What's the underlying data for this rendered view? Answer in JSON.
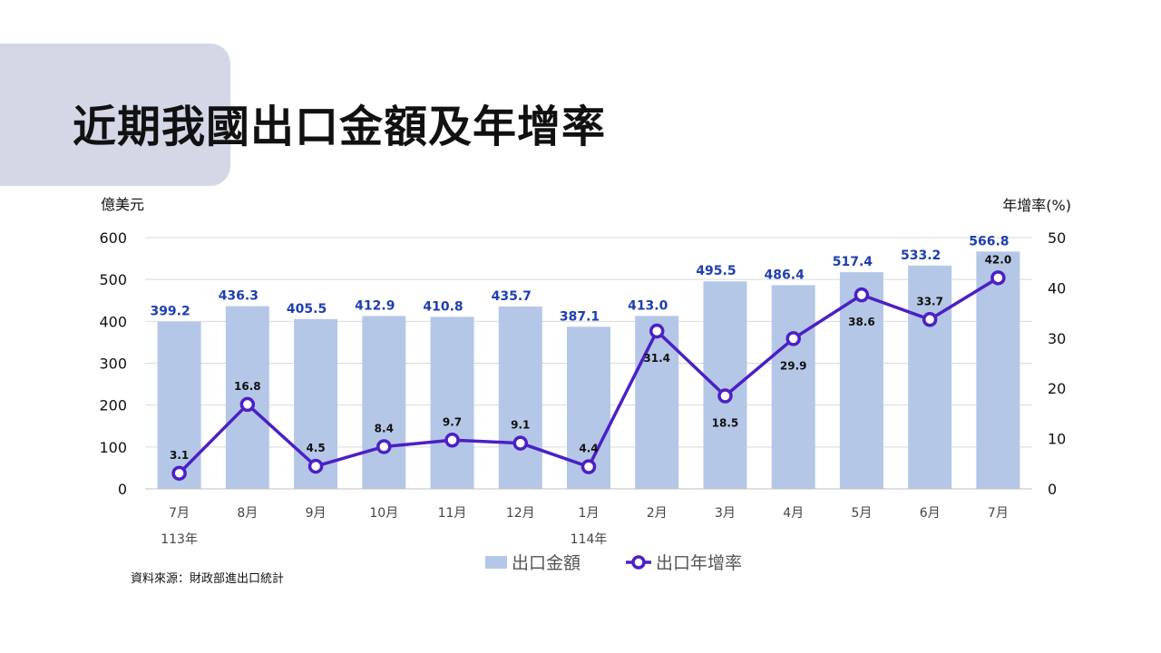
{
  "slide": {
    "title": "近期我國出口金額及年增率",
    "source": "資料來源：財政部進出口統計"
  },
  "colors": {
    "bar": "#b4c7e7",
    "line": "#4b20c4",
    "bar_label": "#1f3fb0",
    "grid": "#d9d9d9",
    "title_bg": "#d4d8e6"
  },
  "chart_data": {
    "type": "bar",
    "categories": [
      "7月",
      "8月",
      "9月",
      "10月",
      "11月",
      "12月",
      "1月",
      "2月",
      "3月",
      "4月",
      "5月",
      "6月",
      "7月"
    ],
    "year_labels": [
      {
        "index": 0,
        "label": "113年"
      },
      {
        "index": 6,
        "label": "114年"
      }
    ],
    "series": [
      {
        "name": "出口金額",
        "type": "bar",
        "axis": "left",
        "values": [
          399.2,
          436.3,
          405.5,
          412.9,
          410.8,
          435.7,
          387.1,
          413.0,
          495.5,
          486.4,
          517.4,
          533.2,
          566.8
        ],
        "labels": [
          "399.2",
          "436.3",
          "405.5",
          "412.9",
          "410.8",
          "435.7",
          "387.1",
          "413.0",
          "495.5",
          "486.4",
          "517.4",
          "533.2",
          "566.8"
        ]
      },
      {
        "name": "出口年增率",
        "type": "line",
        "axis": "right",
        "values": [
          3.1,
          16.8,
          4.5,
          8.4,
          9.7,
          9.1,
          4.4,
          31.4,
          18.5,
          29.9,
          38.6,
          33.7,
          42.0
        ],
        "labels": [
          "3.1",
          "16.8",
          "4.5",
          "8.4",
          "9.7",
          "9.1",
          "4.4",
          "31.4",
          "18.5",
          "29.9",
          "38.6",
          "33.7",
          "42.0"
        ]
      }
    ],
    "ylabel_left": "億美元",
    "ylabel_right": "年增率(%)",
    "ylim_left": [
      0,
      600
    ],
    "yticks_left": [
      "0",
      "100",
      "200",
      "300",
      "400",
      "500",
      "600"
    ],
    "ylim_right": [
      0,
      50
    ],
    "yticks_right": [
      "0",
      "10",
      "20",
      "30",
      "40",
      "50"
    ],
    "grid": true,
    "legend_position": "bottom"
  }
}
